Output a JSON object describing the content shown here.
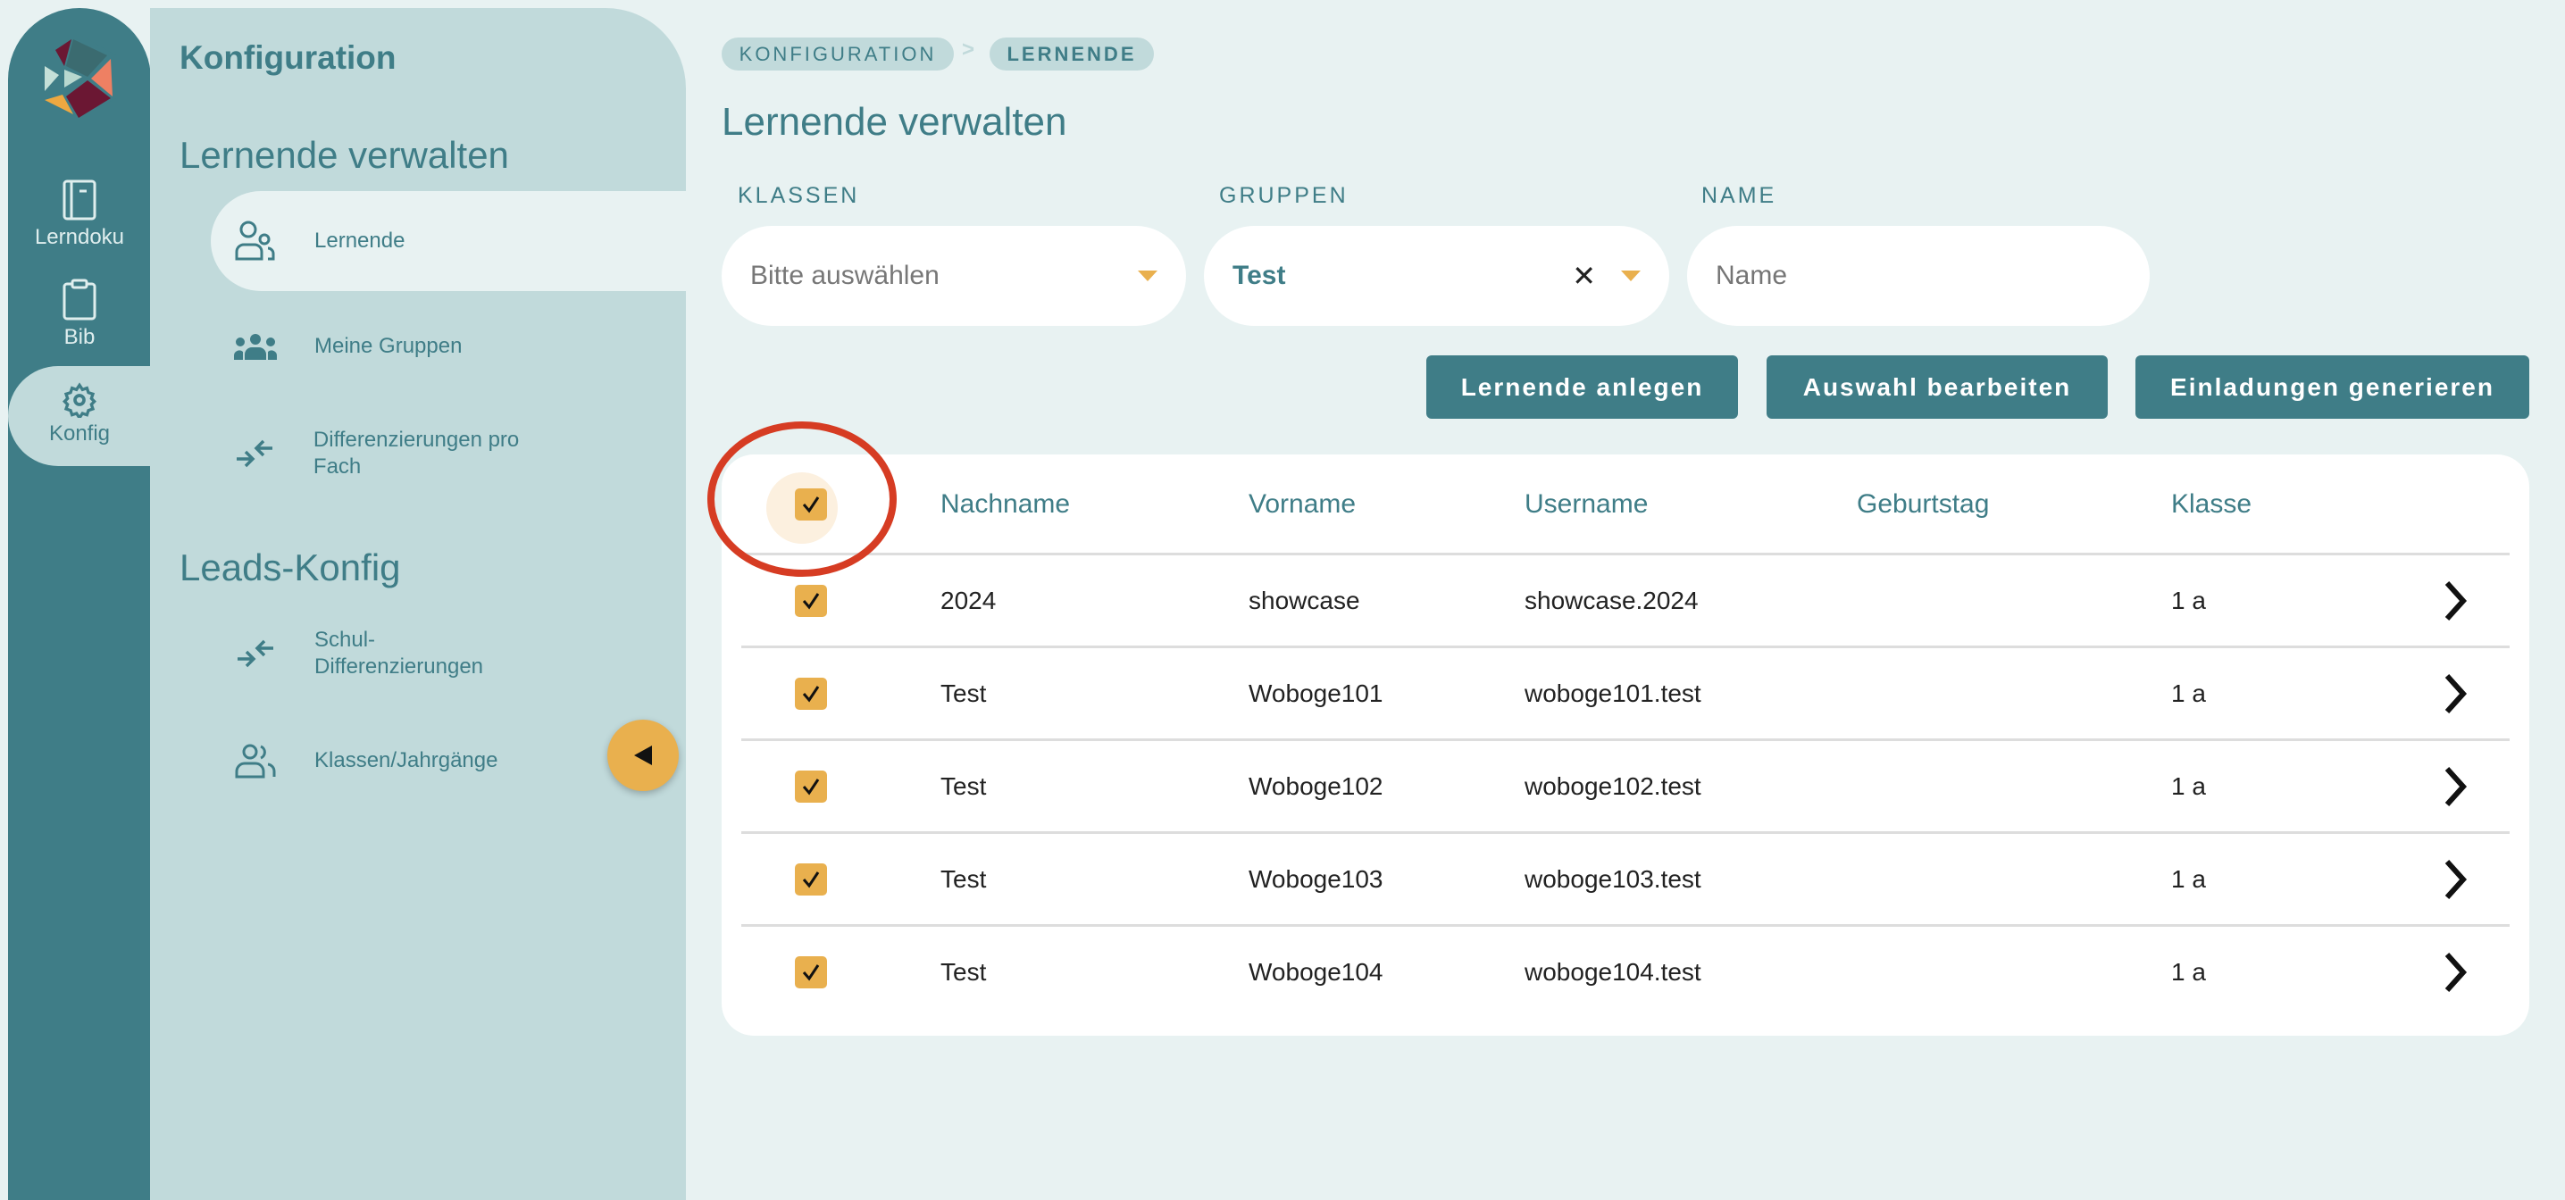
{
  "rail": {
    "items": [
      {
        "label": "Lerndoku",
        "icon": "notebook-icon"
      },
      {
        "label": "Bib",
        "icon": "clipboard-icon"
      },
      {
        "label": "Konfig",
        "icon": "gear-icon"
      }
    ]
  },
  "panel": {
    "title": "Konfiguration",
    "section1": "Lernende verwalten",
    "items1": [
      {
        "label": "Lernende",
        "icon": "users-icon"
      },
      {
        "label": "Meine Gruppen",
        "icon": "group-icon"
      },
      {
        "label": "Differenzierungen pro Fach",
        "icon": "arrows-in-icon"
      }
    ],
    "section2": "Leads-Konfig",
    "items2": [
      {
        "label": "Schul-Differenzierungen",
        "icon": "arrows-in-icon"
      },
      {
        "label": "Klassen/Jahrgänge",
        "icon": "users-icon"
      }
    ]
  },
  "breadcrumb": {
    "items": [
      "KONFIGURATION",
      "LERNENDE"
    ],
    "separator": ">"
  },
  "main": {
    "title": "Lernende verwalten",
    "filters": {
      "klassen_label": "KLASSEN",
      "klassen_placeholder": "Bitte auswählen",
      "gruppen_label": "GRUPPEN",
      "gruppen_value": "Test",
      "name_label": "NAME",
      "name_placeholder": "Name"
    },
    "buttons": {
      "create": "Lernende anlegen",
      "edit": "Auswahl bearbeiten",
      "invite": "Einladungen generieren"
    },
    "table": {
      "columns": [
        "Nachname",
        "Vorname",
        "Username",
        "Geburtstag",
        "Klasse"
      ],
      "rows": [
        [
          "2024",
          "showcase",
          "showcase.2024",
          "",
          "1 a"
        ],
        [
          "Test",
          "Woboge101",
          "woboge101.test",
          "",
          "1 a"
        ],
        [
          "Test",
          "Woboge102",
          "woboge102.test",
          "",
          "1 a"
        ],
        [
          "Test",
          "Woboge103",
          "woboge103.test",
          "",
          "1 a"
        ],
        [
          "Test",
          "Woboge104",
          "woboge104.test",
          "",
          "1 a"
        ]
      ]
    }
  },
  "colors": {
    "teal": "#3f7d87",
    "panel": "#c1dadb",
    "accent": "#e9b04e",
    "highlight": "#d63c23"
  }
}
